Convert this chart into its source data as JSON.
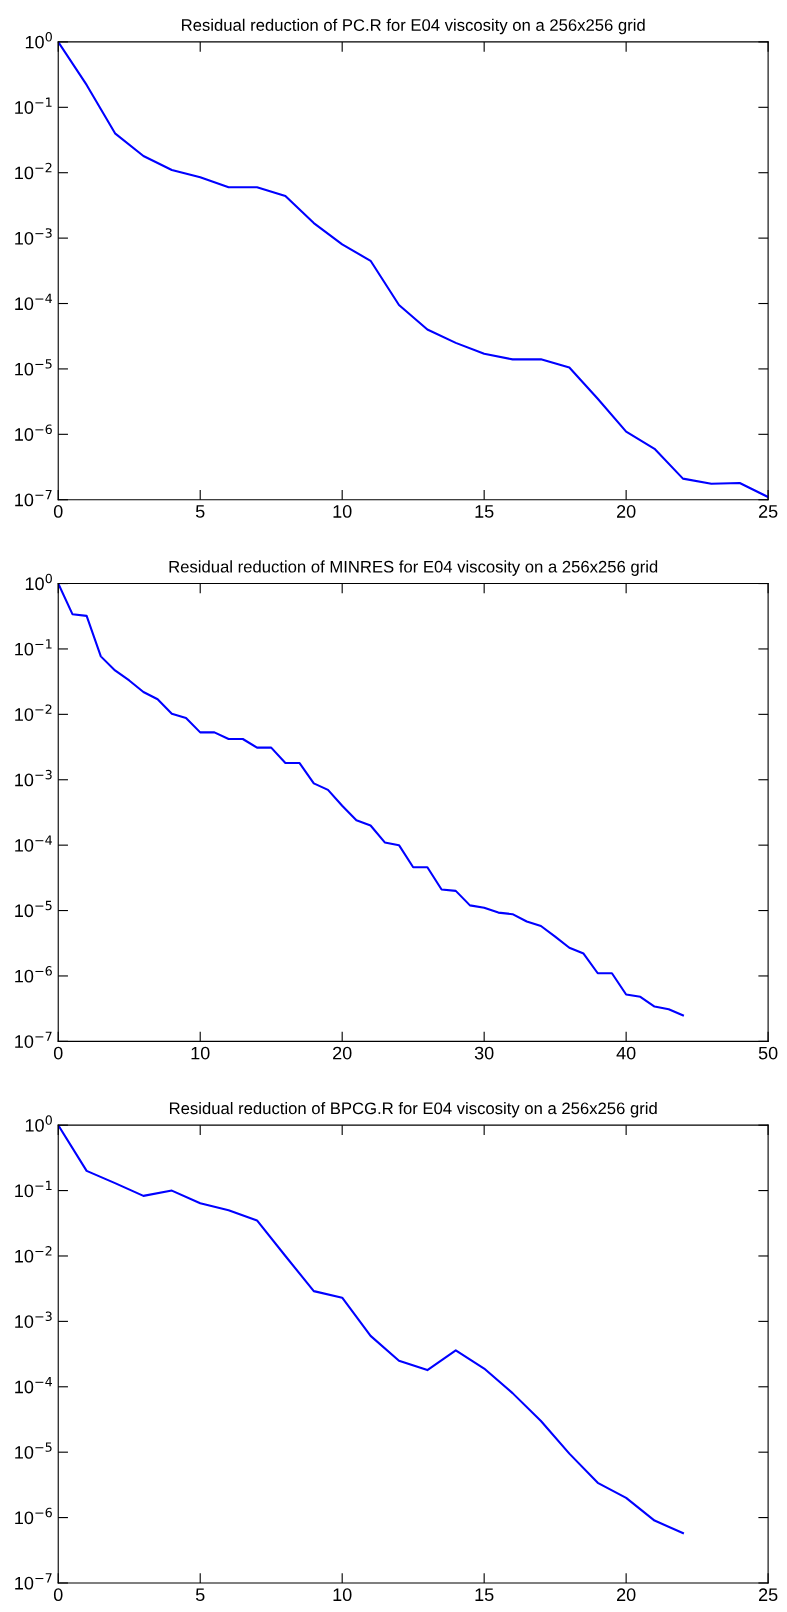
{
  "chart_data": [
    {
      "type": "line",
      "title": "Residual reduction of PC.R for E04 viscosity on a 256x256 grid",
      "log": "y",
      "grid": false,
      "line_style": "solid",
      "x": [
        0,
        1,
        2,
        3,
        4,
        5,
        6,
        7,
        8,
        9,
        10,
        11,
        12,
        13,
        14,
        15,
        16,
        17,
        18,
        19,
        20,
        21,
        22,
        23,
        24,
        25
      ],
      "series": [
        {
          "color": "#0000ff",
          "values": [
            1,
            0.22,
            0.04,
            0.018,
            0.011,
            0.0085,
            0.006,
            0.006,
            0.0044,
            0.0017,
            0.0008,
            0.00045,
            9.5e-05,
            4e-05,
            2.5e-05,
            1.7e-05,
            1.4e-05,
            1.4e-05,
            1.05e-05,
            3.5e-06,
            1.1e-06,
            6e-07,
            2.1e-07,
            1.75e-07,
            1.8e-07,
            1.1e-07
          ]
        }
      ],
      "xlim": [
        0,
        25
      ],
      "xticks": [
        0,
        5,
        10,
        15,
        20,
        25
      ],
      "ylim": [
        1e-07,
        1
      ],
      "yticks": [
        {
          "value": 1,
          "label": "10$^{0}$"
        },
        {
          "value": 0.1,
          "label": "10$^{−1}$"
        },
        {
          "value": 0.01,
          "label": "10$^{−2}$"
        },
        {
          "value": 0.001,
          "label": "10$^{−3}$"
        },
        {
          "value": 0.0001,
          "label": "10$^{−4}$"
        },
        {
          "value": 1e-05,
          "label": "10$^{−5}$"
        },
        {
          "value": 1e-06,
          "label": "10$^{−6}$"
        },
        {
          "value": 1e-07,
          "label": "10$^{−7}$"
        }
      ]
    },
    {
      "type": "line",
      "title": "Residual reduction of MINRES for E04 viscosity on a 256x256 grid",
      "log": "y",
      "grid": false,
      "line_style": "solid",
      "x": [
        0,
        1,
        2,
        3,
        4,
        5,
        6,
        7,
        8,
        9,
        10,
        11,
        12,
        13,
        14,
        15,
        16,
        17,
        18,
        19,
        20,
        21,
        22,
        23,
        24,
        25,
        26,
        27,
        28,
        29,
        30,
        31,
        32,
        33,
        34,
        35,
        36,
        37,
        38,
        39,
        40,
        41,
        42,
        43,
        44
      ],
      "series": [
        {
          "color": "#0000ff",
          "values": [
            1,
            0.34,
            0.32,
            0.077,
            0.047,
            0.033,
            0.022,
            0.017,
            0.0102,
            0.0088,
            0.0053,
            0.0053,
            0.0042,
            0.0042,
            0.0031,
            0.0031,
            0.0018,
            0.0018,
            0.00088,
            0.0007,
            0.0004,
            0.00024,
            0.0002,
            0.00011,
            0.0001,
            4.6e-05,
            4.6e-05,
            2.1e-05,
            2e-05,
            1.2e-05,
            1.1e-05,
            9.3e-06,
            8.8e-06,
            6.8e-06,
            5.8e-06,
            4e-06,
            2.7e-06,
            2.2e-06,
            1.1e-06,
            1.1e-06,
            5.2e-07,
            4.8e-07,
            3.4e-07,
            3.1e-07,
            2.5e-07
          ]
        }
      ],
      "xlim": [
        0,
        50
      ],
      "xticks": [
        0,
        10,
        20,
        30,
        40,
        50
      ],
      "ylim": [
        1e-07,
        1
      ],
      "yticks": [
        {
          "value": 1,
          "label": "10$^{0}$"
        },
        {
          "value": 0.1,
          "label": "10$^{−1}$"
        },
        {
          "value": 0.01,
          "label": "10$^{−2}$"
        },
        {
          "value": 0.001,
          "label": "10$^{−3}$"
        },
        {
          "value": 0.0001,
          "label": "10$^{−4}$"
        },
        {
          "value": 1e-05,
          "label": "10$^{−5}$"
        },
        {
          "value": 1e-06,
          "label": "10$^{−6}$"
        },
        {
          "value": 1e-07,
          "label": "10$^{−7}$"
        }
      ]
    },
    {
      "type": "line",
      "title": "Residual reduction of BPCG.R for E04 viscosity on a 256x256 grid",
      "log": "y",
      "grid": false,
      "line_style": "solid",
      "x": [
        0,
        1,
        2,
        3,
        4,
        5,
        6,
        7,
        8,
        9,
        10,
        11,
        12,
        13,
        14,
        15,
        16,
        17,
        18,
        19,
        20,
        21,
        22
      ],
      "series": [
        {
          "color": "#0000ff",
          "values": [
            1,
            0.2,
            0.13,
            0.083,
            0.1,
            0.064,
            0.05,
            0.035,
            0.01,
            0.0029,
            0.0023,
            0.0006,
            0.00025,
            0.00018,
            0.00036,
            0.00019,
            8e-05,
            3e-05,
            9.5e-06,
            3.4e-06,
            2e-06,
            9e-07,
            5.8e-07
          ]
        }
      ],
      "xlim": [
        0,
        25
      ],
      "xticks": [
        0,
        5,
        10,
        15,
        20,
        25
      ],
      "ylim": [
        1e-07,
        1
      ],
      "yticks": [
        {
          "value": 1,
          "label": "10$^{0}$"
        },
        {
          "value": 0.1,
          "label": "10$^{−1}$"
        },
        {
          "value": 0.01,
          "label": "10$^{−2}$"
        },
        {
          "value": 0.001,
          "label": "10$^{−3}$"
        },
        {
          "value": 0.0001,
          "label": "10$^{−4}$"
        },
        {
          "value": 1e-05,
          "label": "10$^{−5}$"
        },
        {
          "value": 1e-06,
          "label": "10$^{−6}$"
        },
        {
          "value": 1e-07,
          "label": "10$^{−7}$"
        }
      ]
    }
  ]
}
